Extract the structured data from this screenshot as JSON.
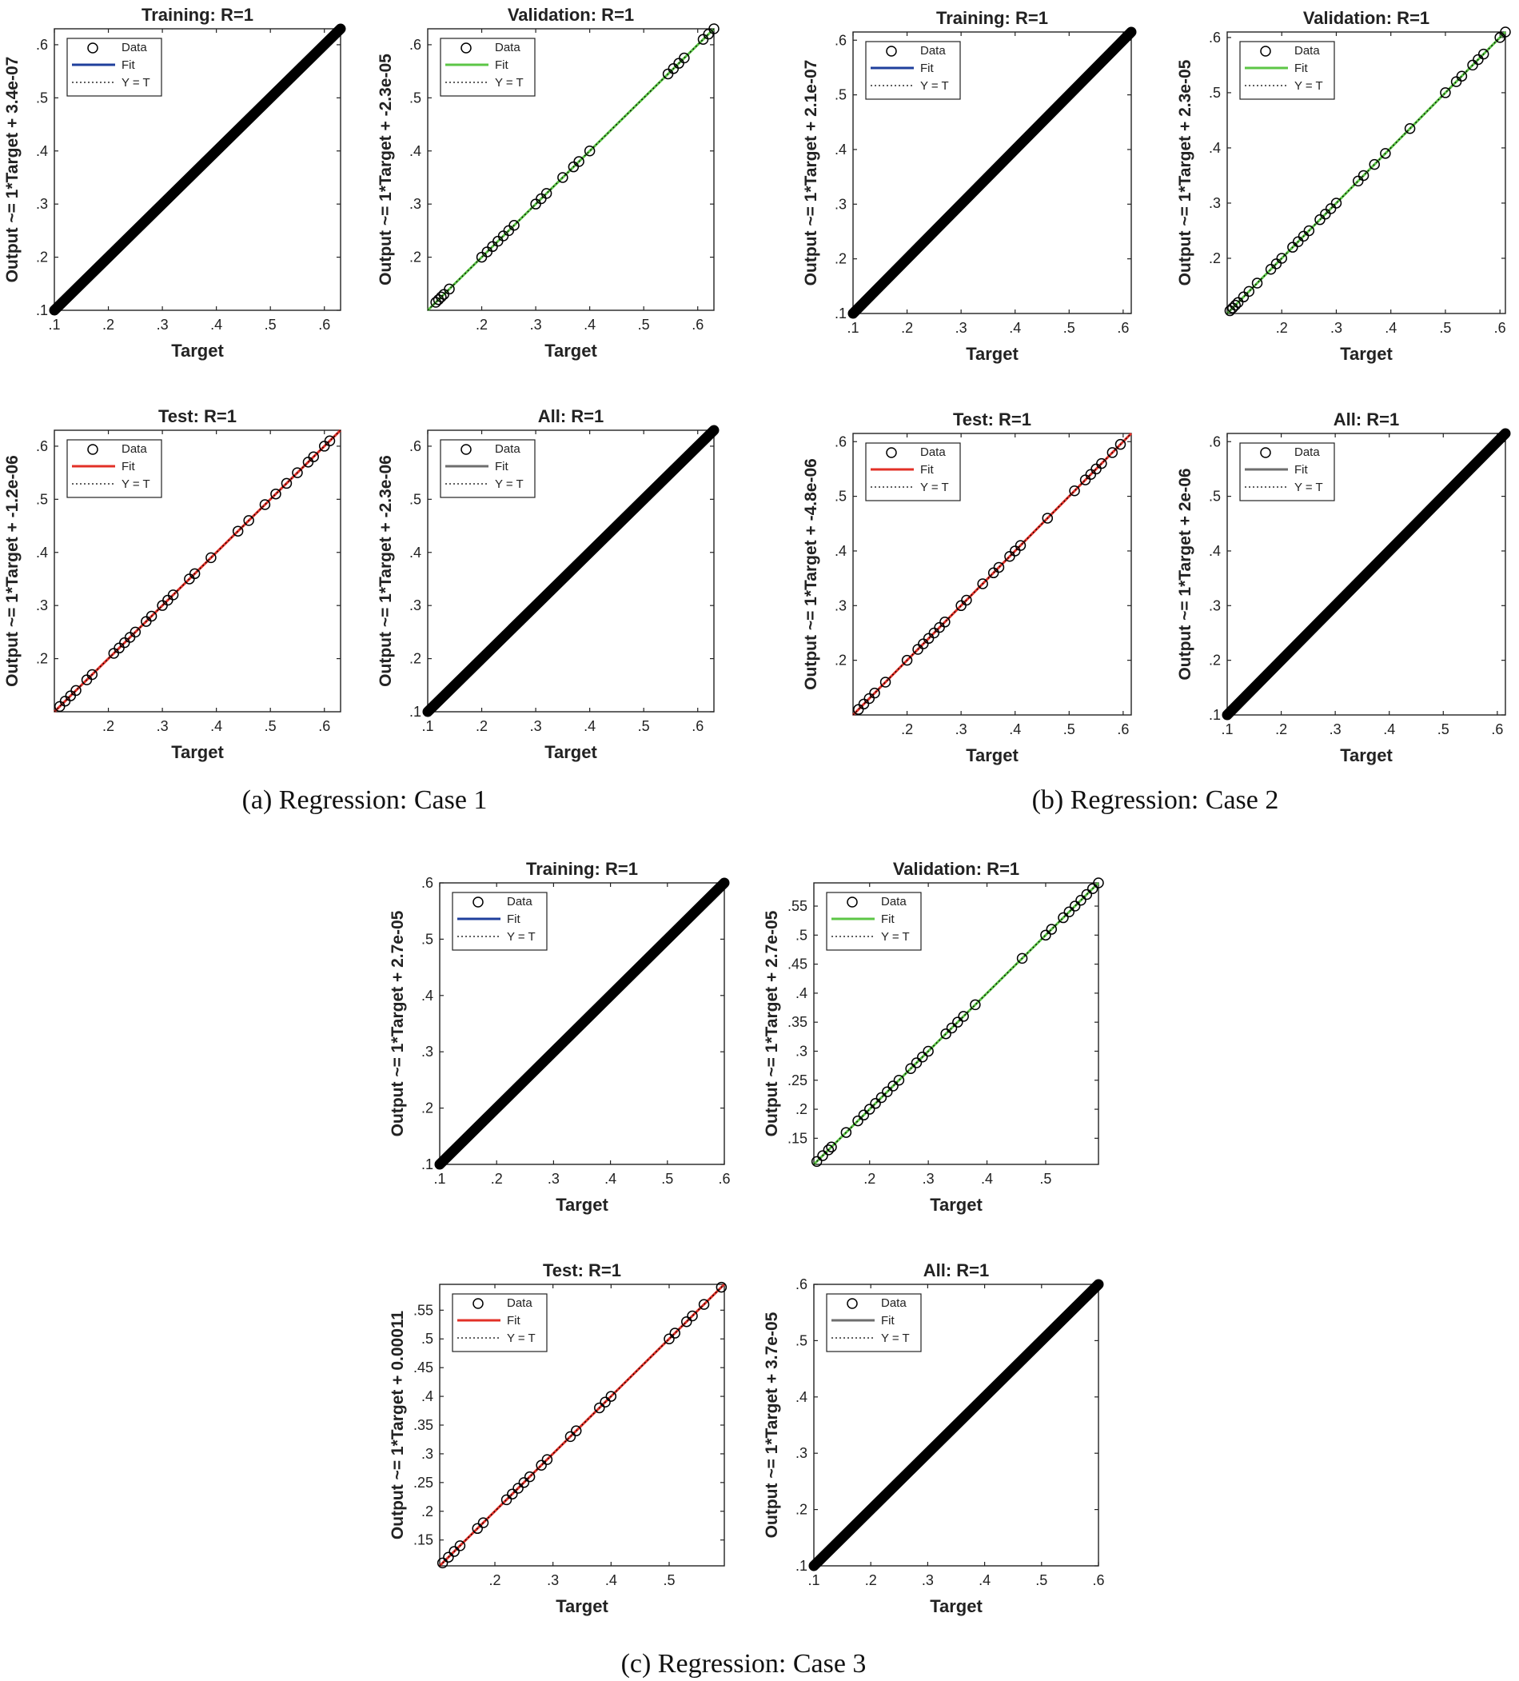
{
  "legend_labels": {
    "data": "Data",
    "fit": "Fit",
    "identity": "Y = T"
  },
  "colors": {
    "training": "#1f3f9c",
    "validation": "#5cc646",
    "test": "#e23027",
    "all": "#6e6e6e",
    "marker": "#000000",
    "identity": "#000000"
  },
  "captions": {
    "a": "(a) Regression: Case 1",
    "b": "(b) Regression: Case 2",
    "c": "(c) Regression: Case 3"
  },
  "chart_data": [
    {
      "type": "scatter",
      "case": "a",
      "panel": "training",
      "title": "Training: R=1",
      "xlabel": "Target",
      "ylabel": "Output ~= 1*Target + 3.4e-07",
      "xlim": [
        0.1,
        0.63
      ],
      "ylim": [
        0.1,
        0.63
      ],
      "xticks": [
        0.1,
        0.2,
        0.3,
        0.4,
        0.5,
        0.6
      ],
      "yticks": [
        0.1,
        0.2,
        0.3,
        0.4,
        0.5,
        0.6
      ],
      "fit": {
        "slope": 1,
        "intercept": 3.4e-07
      },
      "points": [],
      "dense": true,
      "x_range": [
        0.1,
        0.63
      ]
    },
    {
      "type": "scatter",
      "case": "a",
      "panel": "validation",
      "title": "Validation: R=1",
      "xlabel": "Target",
      "ylabel": "Output ~= 1*Target + -2.3e-05",
      "xlim": [
        0.1,
        0.63
      ],
      "ylim": [
        0.1,
        0.63
      ],
      "xticks": [
        0.2,
        0.3,
        0.4,
        0.5,
        0.6
      ],
      "yticks": [
        0.2,
        0.3,
        0.4,
        0.5,
        0.6
      ],
      "fit": {
        "slope": 1,
        "intercept": -2.3e-05
      },
      "points": [
        0.115,
        0.12,
        0.125,
        0.13,
        0.14,
        0.2,
        0.21,
        0.22,
        0.23,
        0.24,
        0.25,
        0.26,
        0.3,
        0.31,
        0.32,
        0.35,
        0.37,
        0.38,
        0.4,
        0.545,
        0.555,
        0.565,
        0.575,
        0.61,
        0.62,
        0.63
      ],
      "dense": false
    },
    {
      "type": "scatter",
      "case": "a",
      "panel": "test",
      "title": "Test: R=1",
      "xlabel": "Target",
      "ylabel": "Output ~= 1*Target + -1.2e-06",
      "xlim": [
        0.1,
        0.63
      ],
      "ylim": [
        0.1,
        0.63
      ],
      "xticks": [
        0.2,
        0.3,
        0.4,
        0.5,
        0.6
      ],
      "yticks": [
        0.2,
        0.3,
        0.4,
        0.5,
        0.6
      ],
      "fit": {
        "slope": 1,
        "intercept": -1.2e-06
      },
      "points": [
        0.11,
        0.12,
        0.13,
        0.14,
        0.16,
        0.17,
        0.21,
        0.22,
        0.23,
        0.24,
        0.25,
        0.27,
        0.28,
        0.3,
        0.31,
        0.32,
        0.35,
        0.36,
        0.39,
        0.44,
        0.46,
        0.49,
        0.51,
        0.53,
        0.55,
        0.57,
        0.58,
        0.6,
        0.61
      ],
      "dense": false
    },
    {
      "type": "scatter",
      "case": "a",
      "panel": "all",
      "title": "All: R=1",
      "xlabel": "Target",
      "ylabel": "Output ~= 1*Target + -2.3e-06",
      "xlim": [
        0.1,
        0.63
      ],
      "ylim": [
        0.1,
        0.63
      ],
      "xticks": [
        0.1,
        0.2,
        0.3,
        0.4,
        0.5,
        0.6
      ],
      "yticks": [
        0.1,
        0.2,
        0.3,
        0.4,
        0.5,
        0.6
      ],
      "fit": {
        "slope": 1,
        "intercept": -2.3e-06
      },
      "points": [],
      "dense": true,
      "x_range": [
        0.1,
        0.63
      ]
    },
    {
      "type": "scatter",
      "case": "b",
      "panel": "training",
      "title": "Training: R=1",
      "xlabel": "Target",
      "ylabel": "Output ~= 1*Target + 2.1e-07",
      "xlim": [
        0.1,
        0.615
      ],
      "ylim": [
        0.1,
        0.615
      ],
      "xticks": [
        0.1,
        0.2,
        0.3,
        0.4,
        0.5,
        0.6
      ],
      "yticks": [
        0.1,
        0.2,
        0.3,
        0.4,
        0.5,
        0.6
      ],
      "fit": {
        "slope": 1,
        "intercept": 2.1e-07
      },
      "points": [],
      "dense": true,
      "x_range": [
        0.1,
        0.615
      ]
    },
    {
      "type": "scatter",
      "case": "b",
      "panel": "validation",
      "title": "Validation: R=1",
      "xlabel": "Target",
      "ylabel": "Output ~= 1*Target + 2.3e-05",
      "xlim": [
        0.1,
        0.61
      ],
      "ylim": [
        0.1,
        0.61
      ],
      "xticks": [
        0.2,
        0.3,
        0.4,
        0.5,
        0.6
      ],
      "yticks": [
        0.2,
        0.3,
        0.4,
        0.5,
        0.6
      ],
      "fit": {
        "slope": 1,
        "intercept": 2.3e-05
      },
      "points": [
        0.105,
        0.11,
        0.115,
        0.12,
        0.13,
        0.14,
        0.155,
        0.18,
        0.19,
        0.2,
        0.22,
        0.23,
        0.24,
        0.25,
        0.27,
        0.28,
        0.29,
        0.3,
        0.34,
        0.35,
        0.37,
        0.39,
        0.435,
        0.5,
        0.52,
        0.53,
        0.55,
        0.56,
        0.57,
        0.6,
        0.61
      ],
      "dense": false
    },
    {
      "type": "scatter",
      "case": "b",
      "panel": "test",
      "title": "Test: R=1",
      "xlabel": "Target",
      "ylabel": "Output ~= 1*Target + -4.8e-06",
      "xlim": [
        0.1,
        0.615
      ],
      "ylim": [
        0.1,
        0.615
      ],
      "xticks": [
        0.2,
        0.3,
        0.4,
        0.5,
        0.6
      ],
      "yticks": [
        0.2,
        0.3,
        0.4,
        0.5,
        0.6
      ],
      "fit": {
        "slope": 1,
        "intercept": -4.8e-06
      },
      "points": [
        0.11,
        0.12,
        0.13,
        0.14,
        0.16,
        0.2,
        0.22,
        0.23,
        0.24,
        0.25,
        0.26,
        0.27,
        0.3,
        0.31,
        0.34,
        0.36,
        0.37,
        0.39,
        0.4,
        0.41,
        0.46,
        0.51,
        0.53,
        0.54,
        0.55,
        0.56,
        0.58,
        0.595
      ],
      "dense": false
    },
    {
      "type": "scatter",
      "case": "b",
      "panel": "all",
      "title": "All: R=1",
      "xlabel": "Target",
      "ylabel": "Output ~= 1*Target + 2e-06",
      "xlim": [
        0.1,
        0.615
      ],
      "ylim": [
        0.1,
        0.615
      ],
      "xticks": [
        0.1,
        0.2,
        0.3,
        0.4,
        0.5,
        0.6
      ],
      "yticks": [
        0.1,
        0.2,
        0.3,
        0.4,
        0.5,
        0.6
      ],
      "fit": {
        "slope": 1,
        "intercept": 2e-06
      },
      "points": [],
      "dense": true,
      "x_range": [
        0.1,
        0.615
      ]
    },
    {
      "type": "scatter",
      "case": "c",
      "panel": "training",
      "title": "Training: R=1",
      "xlabel": "Target",
      "ylabel": "Output ~= 1*Target + 2.7e-05",
      "xlim": [
        0.1,
        0.6
      ],
      "ylim": [
        0.1,
        0.6
      ],
      "xticks": [
        0.1,
        0.2,
        0.3,
        0.4,
        0.5,
        0.6
      ],
      "yticks": [
        0.1,
        0.2,
        0.3,
        0.4,
        0.5,
        0.6
      ],
      "fit": {
        "slope": 1,
        "intercept": 2.7e-05
      },
      "points": [],
      "dense": true,
      "x_range": [
        0.1,
        0.6
      ]
    },
    {
      "type": "scatter",
      "case": "c",
      "panel": "validation",
      "title": "Validation: R=1",
      "xlabel": "Target",
      "ylabel": "Output ~= 1*Target + 2.7e-05",
      "xlim": [
        0.105,
        0.59
      ],
      "ylim": [
        0.105,
        0.59
      ],
      "xticks": [
        0.2,
        0.3,
        0.4,
        0.5
      ],
      "yticks": [
        0.15,
        0.2,
        0.25,
        0.3,
        0.35,
        0.4,
        0.45,
        0.5,
        0.55
      ],
      "fit": {
        "slope": 1,
        "intercept": 2.7e-05
      },
      "points": [
        0.11,
        0.12,
        0.13,
        0.135,
        0.16,
        0.18,
        0.19,
        0.2,
        0.21,
        0.22,
        0.23,
        0.24,
        0.25,
        0.27,
        0.28,
        0.29,
        0.3,
        0.33,
        0.34,
        0.35,
        0.36,
        0.38,
        0.46,
        0.5,
        0.51,
        0.53,
        0.54,
        0.55,
        0.56,
        0.57,
        0.58,
        0.59
      ],
      "dense": false
    },
    {
      "type": "scatter",
      "case": "c",
      "panel": "test",
      "title": "Test: R=1",
      "xlabel": "Target",
      "ylabel": "Output ~= 1*Target + 0.00011",
      "xlim": [
        0.105,
        0.595
      ],
      "ylim": [
        0.105,
        0.595
      ],
      "xticks": [
        0.2,
        0.3,
        0.4,
        0.5
      ],
      "yticks": [
        0.15,
        0.2,
        0.25,
        0.3,
        0.35,
        0.4,
        0.45,
        0.5,
        0.55
      ],
      "fit": {
        "slope": 1,
        "intercept": 0.00011
      },
      "points": [
        0.11,
        0.12,
        0.13,
        0.14,
        0.17,
        0.18,
        0.22,
        0.23,
        0.24,
        0.25,
        0.26,
        0.28,
        0.29,
        0.33,
        0.34,
        0.38,
        0.39,
        0.4,
        0.5,
        0.51,
        0.53,
        0.54,
        0.56,
        0.59
      ],
      "dense": false
    },
    {
      "type": "scatter",
      "case": "c",
      "panel": "all",
      "title": "All: R=1",
      "xlabel": "Target",
      "ylabel": "Output ~= 1*Target + 3.7e-05",
      "xlim": [
        0.1,
        0.6
      ],
      "ylim": [
        0.1,
        0.6
      ],
      "xticks": [
        0.1,
        0.2,
        0.3,
        0.4,
        0.5,
        0.6
      ],
      "yticks": [
        0.1,
        0.2,
        0.3,
        0.4,
        0.5,
        0.6
      ],
      "fit": {
        "slope": 1,
        "intercept": 3.7e-05
      },
      "points": [],
      "dense": true,
      "x_range": [
        0.1,
        0.6
      ]
    }
  ]
}
